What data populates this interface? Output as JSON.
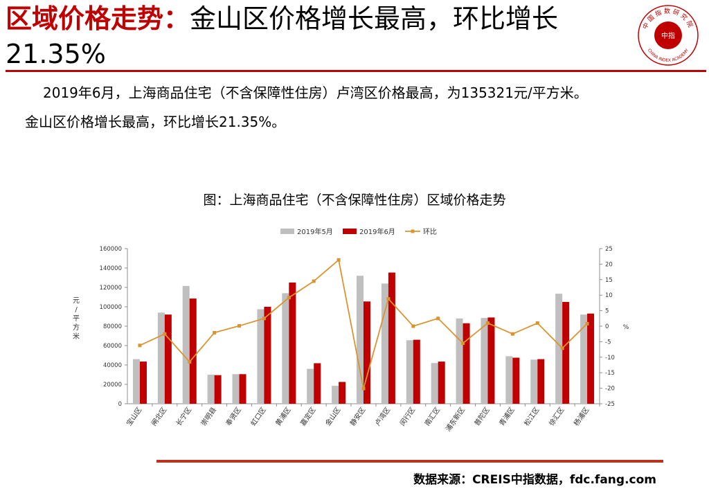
{
  "header": {
    "title_highlight": "区域价格走势：",
    "title_rest": "金山区价格增长最高，环比增长",
    "title_line2": "21.35%"
  },
  "body_text": {
    "para1": "2019年6月，上海商品住宅（不含保障性住房）卢湾区价格最高，为135321元/平方米。",
    "para2": "金山区价格增长最高，环比增长21.35%。"
  },
  "logo": {
    "top_text": "中国指数研究院",
    "center_text": "中指",
    "bottom_text": "CHINA INDEX ACADEMY"
  },
  "colors": {
    "accent_red": "#c00000",
    "may_bar": "#bfbfbf",
    "june_bar": "#c00000",
    "mom_line": "#d99430",
    "source_rule": "#b8341c"
  },
  "chart_data": {
    "type": "bar",
    "title": "图：上海商品住宅（不含保障性住房）区域价格走势",
    "categories": [
      "宝山区",
      "闸北区",
      "长宁区",
      "崇明县",
      "奉贤区",
      "虹口区",
      "黄浦区",
      "嘉定区",
      "金山区",
      "静安区",
      "卢湾区",
      "闵行区",
      "南汇区",
      "浦东新区",
      "普陀区",
      "青浦区",
      "松江区",
      "徐汇区",
      "杨浦区"
    ],
    "series": [
      {
        "name": "2019年5月",
        "type": "bar",
        "axis": "left",
        "values": [
          46000,
          94000,
          121500,
          30000,
          30500,
          97500,
          114000,
          36000,
          18500,
          132000,
          124000,
          65500,
          42000,
          88000,
          88500,
          49000,
          45500,
          113500,
          92000
        ]
      },
      {
        "name": "2019年6月",
        "type": "bar",
        "axis": "left",
        "values": [
          43500,
          92000,
          108500,
          29500,
          30500,
          100000,
          125000,
          41800,
          22500,
          105500,
          135321,
          66000,
          43500,
          83000,
          89000,
          47500,
          46000,
          105000,
          93000
        ]
      },
      {
        "name": "环比",
        "type": "line",
        "axis": "right",
        "values": [
          -6.2,
          -2.5,
          -11.5,
          -2.1,
          0.1,
          2.5,
          9.2,
          14.5,
          21.35,
          -20.1,
          8.8,
          0.0,
          2.5,
          -5.5,
          1.0,
          -2.5,
          1.0,
          -7.1,
          0.8
        ]
      }
    ],
    "ylabel": "元/平方米",
    "y2label": "%",
    "ylim": [
      0,
      160000
    ],
    "yticks": [
      "0",
      "20000",
      "40000",
      "60000",
      "80000",
      "100000",
      "120000",
      "140000",
      "160000"
    ],
    "y2lim": [
      -25,
      25
    ],
    "y2ticks": [
      "-25",
      "-20",
      "-15",
      "-10",
      "-5",
      "0",
      "5",
      "10",
      "15",
      "20",
      "25"
    ],
    "legend_position": "top",
    "grid": false,
    "source": "数据来源：CREIS中指数据，fdc.fang.com"
  }
}
